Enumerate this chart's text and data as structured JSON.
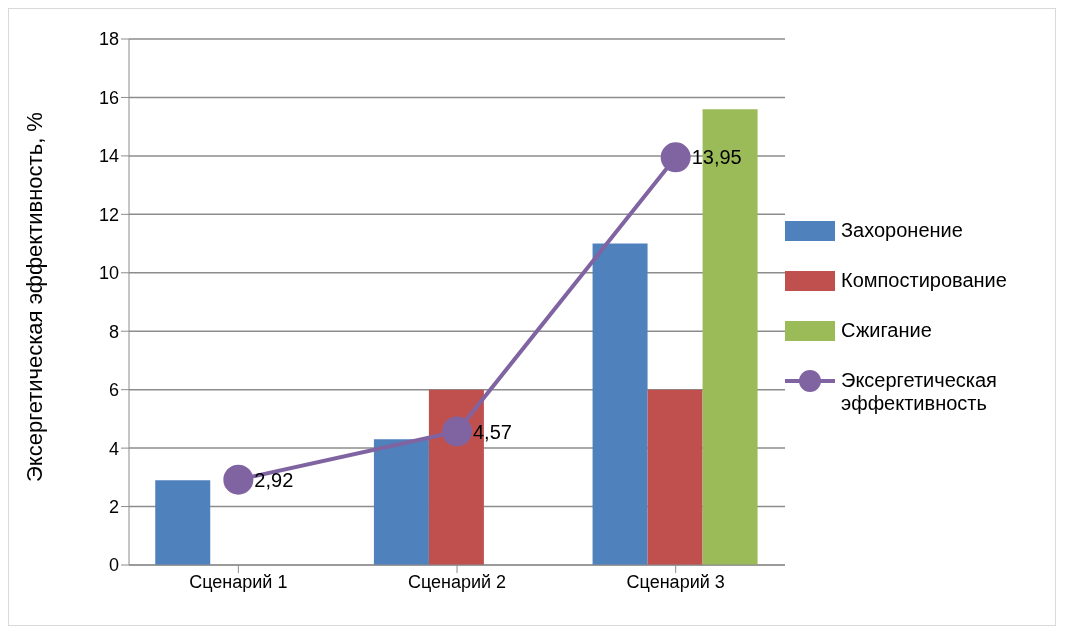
{
  "chart_data": {
    "type": "bar",
    "ylabel": "Эксергетическая эффективность, %",
    "categories": [
      "Сценарий 1",
      "Сценарий 2",
      "Сценарий 3"
    ],
    "series": [
      {
        "name": "Захоронение",
        "color": "#4f81bd",
        "values": [
          2.9,
          4.3,
          11.0
        ]
      },
      {
        "name": "Компостирование",
        "color": "#c0504d",
        "values": [
          null,
          6.0,
          6.0
        ]
      },
      {
        "name": "Сжигание",
        "color": "#9bbb59",
        "values": [
          null,
          null,
          15.6
        ]
      },
      {
        "name": "Эксергетическая эффективность",
        "type": "line",
        "color": "#8064a2",
        "values": [
          2.92,
          4.57,
          13.95
        ],
        "value_labels": [
          "2,92",
          "4,57",
          "13,95"
        ],
        "marker": "circle"
      }
    ],
    "ylim": [
      0,
      18
    ],
    "yticks": [
      0,
      2,
      4,
      6,
      8,
      10,
      12,
      14,
      16,
      18
    ],
    "grid": "y",
    "legend": "right"
  }
}
